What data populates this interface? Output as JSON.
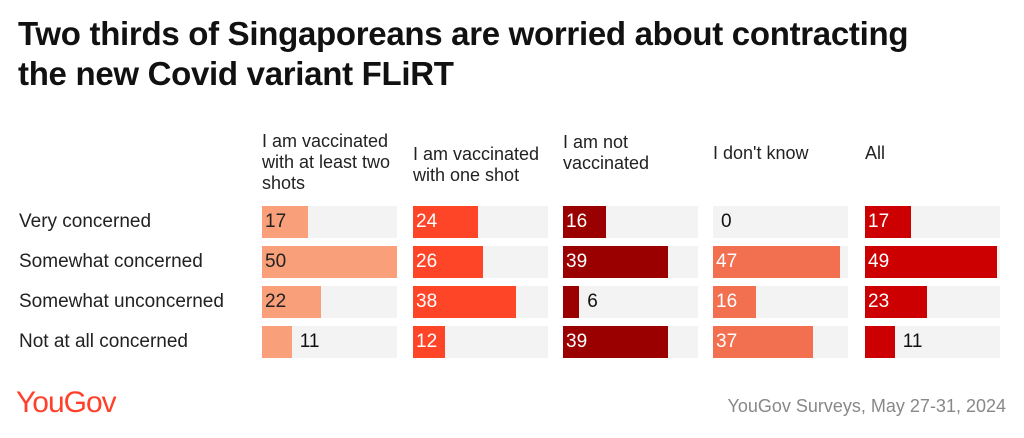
{
  "chart_data": {
    "type": "bar",
    "title": "Two thirds of Singaporeans are worried about contracting the new Covid variant FLiRT",
    "categories": [
      "Very concerned",
      "Somewhat concerned",
      "Somewhat unconcerned",
      "Not at all concerned"
    ],
    "series": [
      {
        "name": "I am vaccinated with at least two shots",
        "values": [
          17,
          50,
          22,
          11
        ],
        "color": "#f9a07a",
        "label_color": "#222222"
      },
      {
        "name": "I am vaccinated with one shot",
        "values": [
          24,
          26,
          38,
          12
        ],
        "color": "#ff4528",
        "label_color": "#ffffff"
      },
      {
        "name": "I am not vaccinated",
        "values": [
          16,
          39,
          6,
          39
        ],
        "color": "#9b0000",
        "label_color": "#ffffff"
      },
      {
        "name": "I don't know",
        "values": [
          0,
          47,
          16,
          37
        ],
        "color": "#f26f50",
        "label_color": "#ffffff"
      },
      {
        "name": "All",
        "values": [
          17,
          49,
          23,
          11
        ],
        "color": "#cc0000",
        "label_color": "#ffffff"
      }
    ],
    "xlim": [
      0,
      50
    ],
    "grid": false
  },
  "footer": {
    "logo": "YouGov",
    "source": "YouGov Surveys, May 27-31, 2024"
  }
}
